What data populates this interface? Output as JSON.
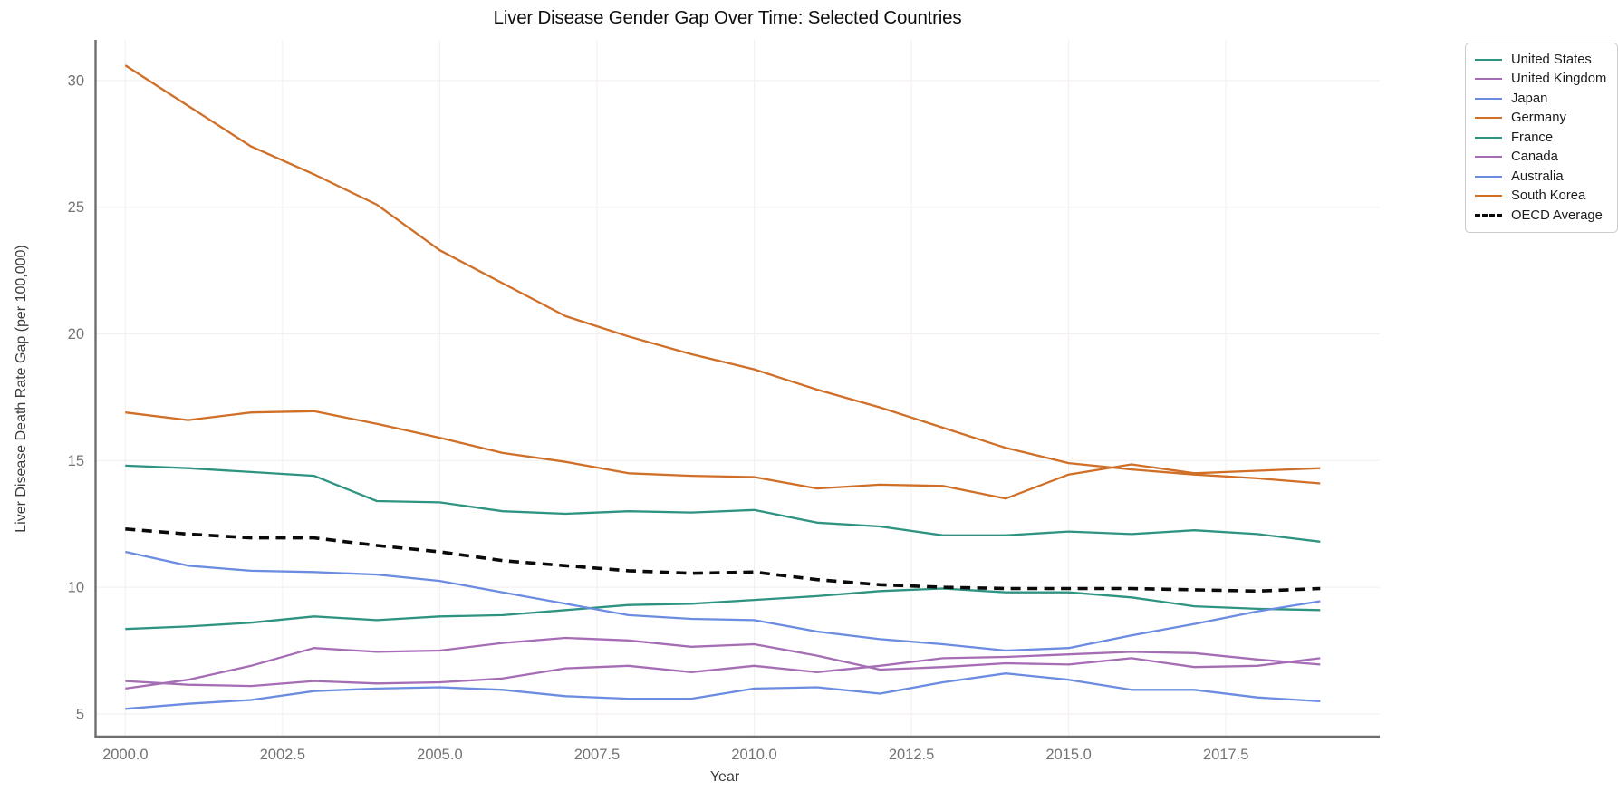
{
  "chart_data": {
    "type": "line",
    "title": "Liver Disease Gender Gap Over Time: Selected Countries",
    "xlabel": "Year",
    "ylabel": "Liver Disease Death Rate Gap (per 100,000)",
    "x": [
      2000,
      2001,
      2002,
      2003,
      2004,
      2005,
      2006,
      2007,
      2008,
      2009,
      2010,
      2011,
      2012,
      2013,
      2014,
      2015,
      2016,
      2017,
      2018,
      2019
    ],
    "x_tick_labels": [
      "2000.0",
      "2002.5",
      "2005.0",
      "2007.5",
      "2010.0",
      "2012.5",
      "2015.0",
      "2017.5"
    ],
    "x_tick_values": [
      2000,
      2002.5,
      2005,
      2007.5,
      2010,
      2012.5,
      2015,
      2017.5
    ],
    "y_tick_labels": [
      "5",
      "10",
      "15",
      "20",
      "25",
      "30"
    ],
    "y_tick_values": [
      5,
      10,
      15,
      20,
      25,
      30
    ],
    "xlim": [
      1999.5,
      2019.95
    ],
    "ylim": [
      4.1,
      31.6
    ],
    "grid": true,
    "legend_position": "upper-right-outside",
    "colors": {
      "teal": "#2e9481",
      "purple": "#a56db4",
      "blue": "#6b8ce0",
      "orange": "#d06f28",
      "black": "#0a0a0a"
    },
    "series": [
      {
        "name": "United States",
        "color": "#2e9481",
        "dash": false,
        "values": [
          8.35,
          8.45,
          8.6,
          8.85,
          8.7,
          8.85,
          8.9,
          9.1,
          9.3,
          9.35,
          9.5,
          9.65,
          9.85,
          9.95,
          9.8,
          9.8,
          9.6,
          9.25,
          9.15,
          9.1
        ]
      },
      {
        "name": "United Kingdom",
        "color": "#a56db4",
        "dash": false,
        "values": [
          6.0,
          6.35,
          6.9,
          7.6,
          7.45,
          7.5,
          7.8,
          8.0,
          7.9,
          7.65,
          7.75,
          7.3,
          6.75,
          6.85,
          7.0,
          6.95,
          7.2,
          6.85,
          6.9,
          7.2
        ]
      },
      {
        "name": "Japan",
        "color": "#6b8ce0",
        "dash": false,
        "values": [
          11.4,
          10.85,
          10.65,
          10.6,
          10.5,
          10.25,
          9.8,
          9.35,
          8.9,
          8.75,
          8.7,
          8.25,
          7.95,
          7.75,
          7.5,
          7.6,
          8.1,
          8.55,
          9.05,
          9.45
        ]
      },
      {
        "name": "Germany",
        "color": "#d06f28",
        "dash": false,
        "values": [
          16.9,
          16.6,
          16.9,
          16.95,
          16.45,
          15.9,
          15.3,
          14.95,
          14.5,
          14.4,
          14.35,
          13.9,
          14.05,
          14.0,
          13.5,
          14.45,
          14.85,
          14.5,
          14.6,
          14.7
        ]
      },
      {
        "name": "France",
        "color": "#2e9481",
        "dash": false,
        "values": [
          14.8,
          14.7,
          14.55,
          14.4,
          13.4,
          13.35,
          13.0,
          12.9,
          13.0,
          12.95,
          13.05,
          12.55,
          12.4,
          12.05,
          12.05,
          12.2,
          12.1,
          12.25,
          12.1,
          11.8
        ]
      },
      {
        "name": "Canada",
        "color": "#a56db4",
        "dash": false,
        "values": [
          6.3,
          6.15,
          6.1,
          6.3,
          6.2,
          6.25,
          6.4,
          6.8,
          6.9,
          6.65,
          6.9,
          6.65,
          6.9,
          7.2,
          7.25,
          7.35,
          7.45,
          7.4,
          7.15,
          6.95
        ]
      },
      {
        "name": "Australia",
        "color": "#6b8ce0",
        "dash": false,
        "values": [
          5.2,
          5.4,
          5.55,
          5.9,
          6.0,
          6.05,
          5.95,
          5.7,
          5.6,
          5.6,
          6.0,
          6.05,
          5.8,
          6.25,
          6.6,
          6.35,
          5.95,
          5.95,
          5.65,
          5.5
        ]
      },
      {
        "name": "South Korea",
        "color": "#d06f28",
        "dash": false,
        "values": [
          30.6,
          29.0,
          27.4,
          26.3,
          25.1,
          23.3,
          22.0,
          20.7,
          19.9,
          19.2,
          18.6,
          17.8,
          17.1,
          16.3,
          15.5,
          14.9,
          14.65,
          14.45,
          14.3,
          14.1
        ]
      },
      {
        "name": "OECD Average",
        "color": "#0a0a0a",
        "dash": true,
        "values": [
          12.3,
          12.1,
          11.95,
          11.95,
          11.65,
          11.4,
          11.05,
          10.85,
          10.65,
          10.55,
          10.6,
          10.3,
          10.1,
          10.0,
          9.95,
          9.95,
          9.95,
          9.9,
          9.85,
          9.95
        ]
      }
    ]
  }
}
